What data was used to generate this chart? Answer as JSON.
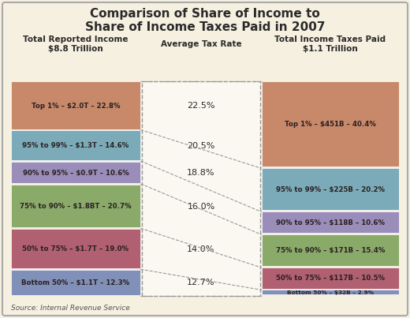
{
  "title": "Comparison of Share of Income to\nShare of Income Taxes Paid in 2007",
  "source": "Source: Internal Revenue Service",
  "left_col_header": "Total Reported Income\n$8.8 Trillion",
  "mid_col_header": "Average Tax Rate",
  "right_col_header": "Total Income Taxes Paid\n$1.1 Trillion",
  "left_bars": [
    {
      "label": "Top 1% – $2.0T – 22.8%",
      "value": 22.8,
      "color": "#c8896a"
    },
    {
      "label": "95% to 99% – $1.3T – 14.6%",
      "value": 14.6,
      "color": "#7baab8"
    },
    {
      "label": "90% to 95% – $0.9T – 10.6%",
      "value": 10.6,
      "color": "#9b8dba"
    },
    {
      "label": "75% to 90% – $1.8BT – 20.7%",
      "value": 20.7,
      "color": "#8aaa6a"
    },
    {
      "label": "50% to 75% – $1.7T – 19.0%",
      "value": 19.0,
      "color": "#b06070"
    },
    {
      "label": "Bottom 50% – $1.1T – 12.3%",
      "value": 12.3,
      "color": "#8090b8"
    }
  ],
  "right_bars": [
    {
      "label": "Top 1% – $451B – 40.4%",
      "value": 40.4,
      "color": "#c8896a"
    },
    {
      "label": "95% to 99% – $225B – 20.2%",
      "value": 20.2,
      "color": "#7baab8"
    },
    {
      "label": "90% to 95% – $118B – 10.6%",
      "value": 10.6,
      "color": "#9b8dba"
    },
    {
      "label": "75% to 90% – $171B – 15.4%",
      "value": 15.4,
      "color": "#8aaa6a"
    },
    {
      "label": "50% to 75% – $117B – 10.5%",
      "value": 10.5,
      "color": "#b06070"
    },
    {
      "label": "Bottom 50% – $32B – 2.9%",
      "value": 2.9,
      "color": "#8090b8"
    }
  ],
  "tax_rates": [
    "22.5%",
    "20.5%",
    "18.8%",
    "16.0%",
    "14.0%",
    "12.7%"
  ],
  "background_color": "#f5f0e0",
  "border_color": "#aaaaaa",
  "text_color": "#2a2a2a",
  "bar_text_color": "#2a2020"
}
